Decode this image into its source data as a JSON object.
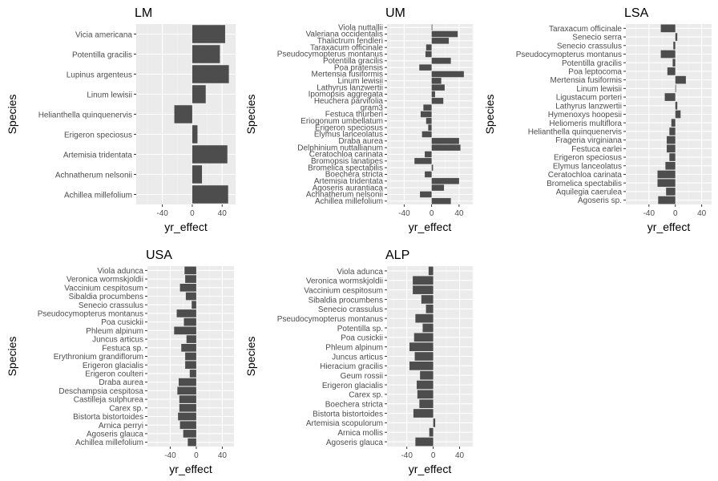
{
  "chart_data": [
    {
      "type": "bar",
      "title": "LM",
      "xlabel": "yr_effect",
      "ylabel": "Species",
      "xlim": [
        -75,
        58
      ],
      "xticks": [
        -40,
        0,
        40
      ],
      "categories": [
        "Vicia americana",
        "Potentilla gracilis",
        "Lupinus argenteus",
        "Linum lewisii",
        "Helianthella quinquenervis",
        "Erigeron speciosus",
        "Artemisia tridentata",
        "Achnatherum nelsonii",
        "Achillea millefolium"
      ],
      "values": [
        44,
        37,
        49,
        18,
        -24,
        7,
        47,
        13,
        48
      ]
    },
    {
      "type": "bar",
      "title": "UM",
      "xlabel": "yr_effect",
      "ylabel": "Species",
      "xlim": [
        -65,
        60
      ],
      "xticks": [
        -40,
        0,
        40
      ],
      "categories": [
        "Viola nuttallii",
        "Valeriana occidentalis",
        "Thalictrum fendleri",
        "Taraxacum officinale",
        "Pseudocymopterus montanus",
        "Potentilla gracilis",
        "Poa pratensis",
        "Mertensia fusiformis",
        "Linum lewisii",
        "Lathyrus lanzwertii",
        "Ipomopsis aggregata",
        "Heuchera parvifolia",
        "gram3",
        "Festuca thurberi",
        "Eriogonum umbellatum",
        "Erigeron speciosus",
        "Elymus lanceolatus",
        "Draba aurea",
        "Delphinium nuttallianum",
        "Ceratochloa carinata",
        "Bromopsis lanatipes",
        "Bromelica spectabilis",
        "Boechera stricta",
        "Artemisia tridentata",
        "Agoseris aurantiaca",
        "Achnatherum nelsonii",
        "Achillea millefolium"
      ],
      "values": [
        1,
        38,
        25,
        -8,
        -9,
        28,
        -18,
        47,
        14,
        19,
        5,
        17,
        -12,
        -16,
        -8,
        -5,
        -14,
        40,
        42,
        -10,
        -25,
        2,
        -10,
        40,
        18,
        -17,
        28
      ]
    },
    {
      "type": "bar",
      "title": "LSA",
      "xlabel": "yr_effect",
      "ylabel": "Species",
      "xlim": [
        -75,
        55
      ],
      "xticks": [
        -40,
        0,
        40
      ],
      "categories": [
        "Taraxacum officinale",
        "Senecio serra",
        "Senecio crassulus",
        "Pseudocymopterus montanus",
        "Potentilla gracilis",
        "Poa leptocoma",
        "Mertensia fusiformis",
        "Linum lewisii",
        "Ligustacum porteri",
        "Lathyrus lanzwertii",
        "Hymenoxys hoopesii",
        "Heliomeris multiflora",
        "Helianthella quinquenervis",
        "Frageria virginiana",
        "Festuca earlei",
        "Erigeron speciosus",
        "Elymus lanceolatus",
        "Ceratochloa carinata",
        "Bromelica spectabilis",
        "Aquilegia caerulea",
        "Agoseris sp."
      ],
      "values": [
        -22,
        3,
        -3,
        -22,
        -4,
        -12,
        16,
        1,
        -16,
        3,
        8,
        -6,
        -9,
        -13,
        -13,
        -9,
        -15,
        -27,
        -27,
        -14,
        -26
      ]
    },
    {
      "type": "bar",
      "title": "USA",
      "xlabel": "yr_effect",
      "ylabel": "Species",
      "xlim": [
        -75,
        58
      ],
      "xticks": [
        -40,
        0,
        40
      ],
      "categories": [
        "Viola adunca",
        "Veronica wormskjoldii",
        "Vaccinium cespitosum",
        "Sibaldia procumbens",
        "Senecio crassulus",
        "Pseudocymopterus montanus",
        "Poa cusickii",
        "Phleum alpinum",
        "Juncus articus",
        "Festuca sp.",
        "Erythronium grandiflorum",
        "Erigeron glacialis",
        "Erigeron coulteri",
        "Draba aurea",
        "Deschampsia cespitosa",
        "Castilleja sulphurea",
        "Carex sp.",
        "Bistorta bistortoides",
        "Arnica perryi",
        "Agoseris glauca",
        "Achillea millefolium"
      ],
      "values": [
        -18,
        -17,
        -25,
        -16,
        -7,
        -30,
        -19,
        -34,
        -15,
        -23,
        -17,
        -17,
        -10,
        -27,
        -29,
        -26,
        -26,
        -28,
        -25,
        -20,
        -13
      ]
    },
    {
      "type": "bar",
      "title": "ALP",
      "xlabel": "yr_effect",
      "ylabel": "Species",
      "xlim": [
        -70,
        60
      ],
      "xticks": [
        -40,
        0,
        40
      ],
      "categories": [
        "Viola adunca",
        "Veronica wormskjoldii",
        "Vaccinium cespitosum",
        "Sibaldia procumbens",
        "Senecio crassulus",
        "Pseudocymopterus montanus",
        "Potentilla sp.",
        "Poa cusickii",
        "Phleum alpinum",
        "Juncus articus",
        "Hieracium gracilis",
        "Geum rossii",
        "Erigeron glacialis",
        "Carex sp.",
        "Boechera stricta",
        "Bistorta bistortoides",
        "Artemisia scopulorum",
        "Arnica mollis",
        "Agoseris glauca"
      ],
      "values": [
        -7,
        -31,
        -31,
        -18,
        -11,
        -27,
        -16,
        -29,
        -36,
        -28,
        -36,
        -20,
        -25,
        -24,
        -21,
        -30,
        3,
        -6,
        -27
      ]
    }
  ]
}
